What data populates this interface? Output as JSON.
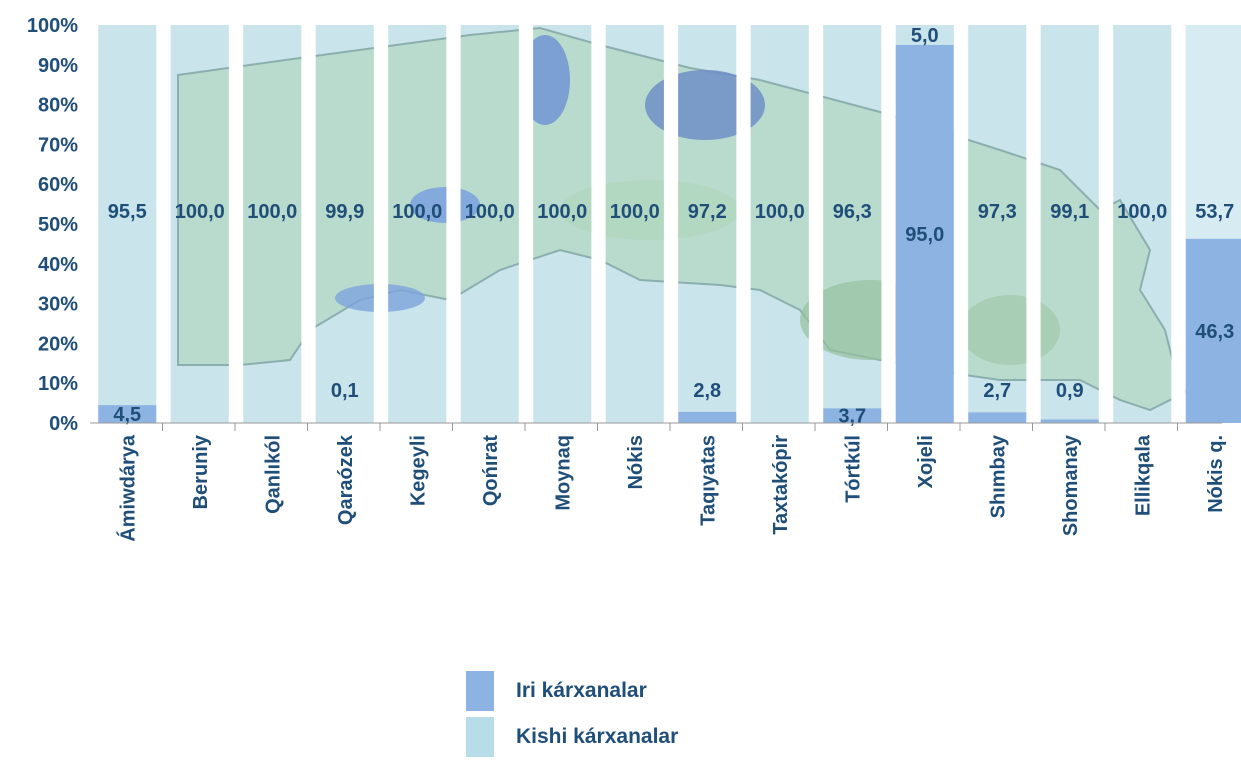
{
  "chart_data": {
    "type": "bar",
    "stacked_percent": true,
    "categories": [
      "Ámiwdárya",
      "Beruniy",
      "Qanlıkól",
      "Qaraózek",
      "Kegeyli",
      "Qońırat",
      "Moynaq",
      "Nókis",
      "Taqıyatas",
      "Taxtakópir",
      "Tórtkúl",
      "Xojeli",
      "Shımbay",
      "Shomanay",
      "Ellikqala",
      "Nókis q."
    ],
    "series": [
      {
        "name": "Iri kárxanalar",
        "color": "#8db3e2",
        "values": [
          4.5,
          0.0,
          0.0,
          0.1,
          0.0,
          0.0,
          0.0,
          0.0,
          2.8,
          0.0,
          3.7,
          95.0,
          2.7,
          0.9,
          0.0,
          46.3
        ],
        "labels": [
          "4,5",
          null,
          null,
          "0,1",
          null,
          null,
          null,
          null,
          "2,8",
          null,
          "3,7",
          "95,0",
          "2,7",
          "0,9",
          null,
          "46,3"
        ]
      },
      {
        "name": "Kishi kárxanalar",
        "color": "#b7dde8",
        "values": [
          95.5,
          100.0,
          100.0,
          99.9,
          100.0,
          100.0,
          100.0,
          100.0,
          97.2,
          100.0,
          96.3,
          5.0,
          97.3,
          99.1,
          100.0,
          53.7
        ],
        "labels": [
          "95,5",
          "100,0",
          "100,0",
          "99,9",
          "100,0",
          "100,0",
          "100,0",
          "100,0",
          "97,2",
          "100,0",
          "96,3",
          "5,0",
          "97,3",
          "99,1",
          "100,0",
          "53,7"
        ]
      }
    ],
    "yticks": [
      "0%",
      "10%",
      "20%",
      "30%",
      "40%",
      "50%",
      "60%",
      "70%",
      "80%",
      "90%",
      "100%"
    ],
    "ylim": [
      0,
      100
    ],
    "legend_position": "bottom-center",
    "grid": false
  }
}
